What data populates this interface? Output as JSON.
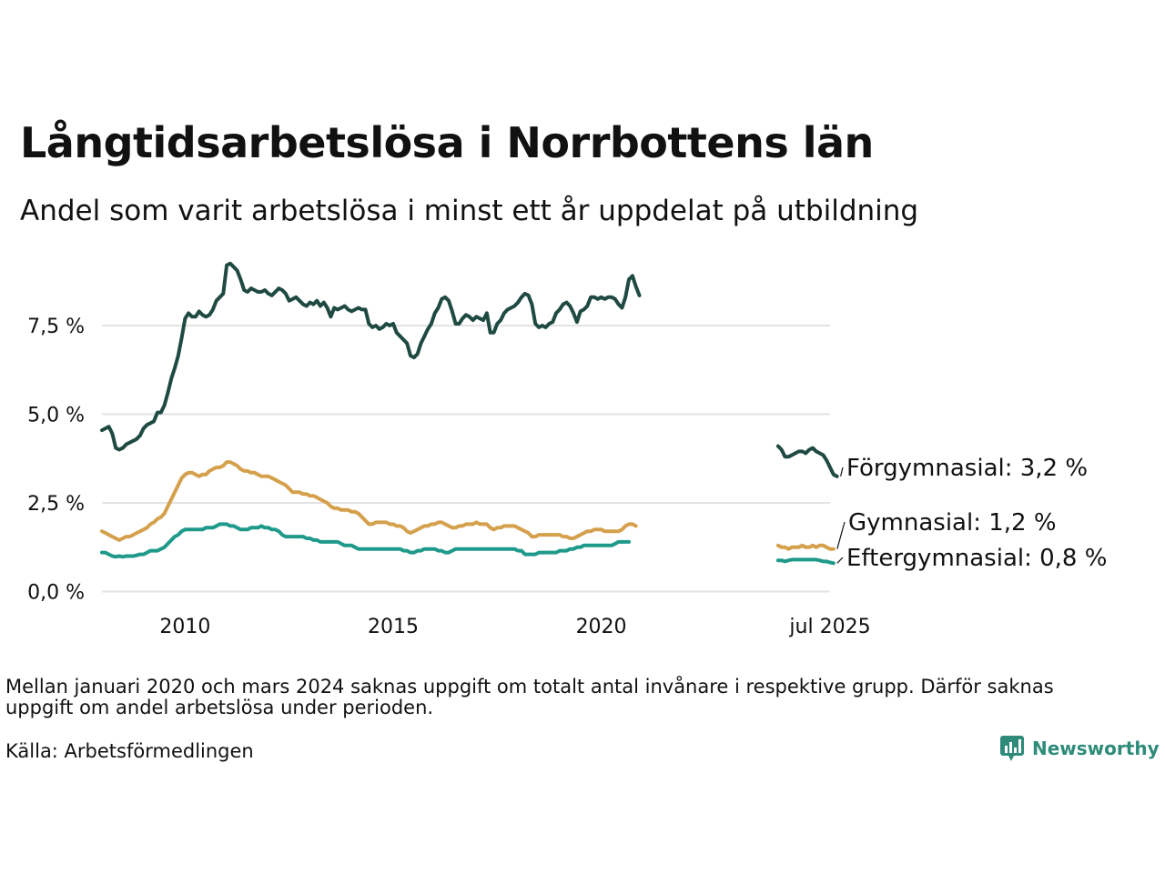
{
  "title": "Långtidsarbetslösa i Norrbottens län",
  "subtitle": "Andel som varit arbetslösa i minst ett år uppdelat på utbildning",
  "note": "Mellan januari 2020 och mars 2024 saknas uppgift om totalt antal invånare i respektive grupp. Därför saknas uppgift om andel arbetslösa under perioden.",
  "source": "Källa: Arbetsförmedlingen",
  "brand": "Newsworthy",
  "chart_data": {
    "type": "line",
    "title": "Långtidsarbetslösa i Norrbottens län",
    "subtitle": "Andel som varit arbetslösa i minst ett år uppdelat på utbildning",
    "xlabel": "",
    "ylabel": "",
    "ylim": [
      -0.5,
      9.5
    ],
    "xlim": [
      "2008-01",
      "2025-07"
    ],
    "y_ticks": [
      0,
      2.5,
      5,
      7.5
    ],
    "y_tick_labels": [
      "0,0 %",
      "2,5 %",
      "5,0 %",
      "7,5 %"
    ],
    "x_ticks": [
      "2010-01",
      "2015-01",
      "2020-01",
      "2025-07"
    ],
    "x_tick_labels": [
      "2010",
      "2015",
      "2020",
      "jul 2025"
    ],
    "grid": "horizontal",
    "series": [
      {
        "name": "Förgymnasial",
        "label": "Förgymnasial: 3,2 %",
        "color": "#1f4a42",
        "segments": [
          {
            "start": "2008-01",
            "values": [
              4.55,
              4.6,
              4.65,
              4.45,
              4.05,
              4,
              4.05,
              4.15,
              4.2,
              4.25,
              4.3,
              4.4,
              4.6,
              4.7,
              4.75,
              4.8,
              5.05,
              5.05,
              5.25,
              5.6,
              6,
              6.3,
              6.65,
              7.15,
              7.7,
              7.85,
              7.75,
              7.75,
              7.9,
              7.8,
              7.75,
              7.8,
              7.95,
              8.2,
              8.3,
              8.4,
              9.2,
              9.25,
              9.15,
              9.05,
              8.8,
              8.5,
              8.45,
              8.55,
              8.5,
              8.45,
              8.45,
              8.5,
              8.4,
              8.35,
              8.45,
              8.55,
              8.5,
              8.4,
              8.2,
              8.25,
              8.3,
              8.2,
              8.1,
              8.05,
              8.15,
              8.1,
              8.2,
              8.05,
              8.15,
              8.0,
              7.75,
              8.0,
              7.95,
              8.0,
              8.05,
              7.95,
              7.9,
              7.95,
              8.0,
              7.95,
              7.95,
              7.55,
              7.45,
              7.5,
              7.4,
              7.45,
              7.55,
              7.5,
              7.55,
              7.3,
              7.2,
              7.1,
              7.0,
              6.65,
              6.6,
              6.7,
              7.0,
              7.2,
              7.4,
              7.55,
              7.85,
              8.0,
              8.25,
              8.3,
              8.2,
              7.9,
              7.55,
              7.55,
              7.7,
              7.8,
              7.75,
              7.65,
              7.75,
              7.7,
              7.65,
              7.85,
              7.3,
              7.3,
              7.55,
              7.65,
              7.85,
              7.95,
              8.0,
              8.05,
              8.15,
              8.3,
              8.4,
              8.35,
              8.1,
              7.55,
              7.45,
              7.5,
              7.45,
              7.55,
              7.6,
              7.85,
              7.95,
              8.1,
              8.15,
              8.05,
              7.85,
              7.6,
              7.9,
              7.95,
              8.05,
              8.3,
              8.3,
              8.25,
              8.3,
              8.25,
              8.3,
              8.3,
              8.25,
              8.1,
              8.0,
              8.3,
              8.8,
              8.9,
              8.6,
              8.35
            ]
          },
          {
            "start": "2024-04",
            "values": [
              4.1,
              4.0,
              3.8,
              3.8,
              3.85,
              3.9,
              3.95,
              3.95,
              3.9,
              4.0,
              4.05,
              3.95,
              3.9,
              3.85,
              3.7,
              3.5,
              3.3,
              3.25
            ]
          }
        ]
      },
      {
        "name": "Gymnasial",
        "label": "Gymnasial: 1,2 %",
        "color": "#d4a04c",
        "segments": [
          {
            "start": "2008-01",
            "values": [
              1.7,
              1.65,
              1.6,
              1.55,
              1.5,
              1.45,
              1.5,
              1.55,
              1.55,
              1.6,
              1.65,
              1.7,
              1.75,
              1.8,
              1.9,
              1.95,
              2.05,
              2.1,
              2.2,
              2.4,
              2.6,
              2.8,
              3.0,
              3.2,
              3.3,
              3.35,
              3.35,
              3.3,
              3.25,
              3.3,
              3.3,
              3.4,
              3.45,
              3.5,
              3.5,
              3.55,
              3.65,
              3.65,
              3.6,
              3.55,
              3.45,
              3.4,
              3.4,
              3.35,
              3.35,
              3.3,
              3.25,
              3.25,
              3.25,
              3.2,
              3.15,
              3.1,
              3.05,
              3.0,
              2.9,
              2.8,
              2.8,
              2.8,
              2.75,
              2.75,
              2.7,
              2.7,
              2.65,
              2.6,
              2.55,
              2.5,
              2.4,
              2.35,
              2.35,
              2.3,
              2.3,
              2.3,
              2.25,
              2.25,
              2.2,
              2.1,
              2.0,
              1.9,
              1.9,
              1.95,
              1.95,
              1.95,
              1.95,
              1.9,
              1.9,
              1.85,
              1.85,
              1.8,
              1.7,
              1.65,
              1.7,
              1.75,
              1.8,
              1.85,
              1.85,
              1.9,
              1.9,
              1.95,
              1.95,
              1.9,
              1.85,
              1.8,
              1.8,
              1.85,
              1.85,
              1.9,
              1.9,
              1.9,
              1.95,
              1.9,
              1.9,
              1.9,
              1.8,
              1.75,
              1.8,
              1.8,
              1.85,
              1.85,
              1.85,
              1.85,
              1.8,
              1.75,
              1.7,
              1.65,
              1.55,
              1.55,
              1.6,
              1.6,
              1.6,
              1.6,
              1.6,
              1.6,
              1.6,
              1.55,
              1.55,
              1.5,
              1.5,
              1.55,
              1.6,
              1.65,
              1.7,
              1.7,
              1.75,
              1.75,
              1.75,
              1.7,
              1.7,
              1.7,
              1.7,
              1.7,
              1.75,
              1.85,
              1.9,
              1.9,
              1.85
            ]
          },
          {
            "start": "2024-04",
            "values": [
              1.3,
              1.25,
              1.25,
              1.2,
              1.25,
              1.25,
              1.25,
              1.3,
              1.25,
              1.25,
              1.3,
              1.25,
              1.3,
              1.3,
              1.25,
              1.2,
              1.2
            ]
          }
        ]
      },
      {
        "name": "Eftergymnasial",
        "label": "Eftergymnasial: 0,8 %",
        "color": "#1f9a8a",
        "segments": [
          {
            "start": "2008-01",
            "values": [
              1.1,
              1.1,
              1.05,
              1.0,
              0.98,
              1.0,
              0.98,
              1.0,
              1.0,
              1.0,
              1.02,
              1.05,
              1.05,
              1.1,
              1.15,
              1.15,
              1.15,
              1.2,
              1.25,
              1.35,
              1.45,
              1.55,
              1.6,
              1.7,
              1.75,
              1.75,
              1.75,
              1.75,
              1.75,
              1.75,
              1.8,
              1.8,
              1.8,
              1.85,
              1.9,
              1.9,
              1.9,
              1.85,
              1.85,
              1.8,
              1.75,
              1.75,
              1.75,
              1.8,
              1.8,
              1.8,
              1.85,
              1.8,
              1.8,
              1.75,
              1.75,
              1.7,
              1.6,
              1.55,
              1.55,
              1.55,
              1.55,
              1.55,
              1.55,
              1.5,
              1.5,
              1.45,
              1.45,
              1.4,
              1.4,
              1.4,
              1.4,
              1.4,
              1.4,
              1.35,
              1.3,
              1.3,
              1.3,
              1.25,
              1.2,
              1.2,
              1.2,
              1.2,
              1.2,
              1.2,
              1.2,
              1.2,
              1.2,
              1.2,
              1.2,
              1.2,
              1.2,
              1.15,
              1.15,
              1.1,
              1.1,
              1.15,
              1.15,
              1.2,
              1.2,
              1.2,
              1.2,
              1.15,
              1.15,
              1.1,
              1.1,
              1.15,
              1.2,
              1.2,
              1.2,
              1.2,
              1.2,
              1.2,
              1.2,
              1.2,
              1.2,
              1.2,
              1.2,
              1.2,
              1.2,
              1.2,
              1.2,
              1.2,
              1.2,
              1.2,
              1.15,
              1.15,
              1.05,
              1.05,
              1.05,
              1.05,
              1.1,
              1.1,
              1.1,
              1.1,
              1.1,
              1.1,
              1.15,
              1.15,
              1.15,
              1.2,
              1.2,
              1.25,
              1.25,
              1.3,
              1.3,
              1.3,
              1.3,
              1.3,
              1.3,
              1.3,
              1.3,
              1.3,
              1.35,
              1.4,
              1.4,
              1.4,
              1.4
            ]
          },
          {
            "start": "2024-04",
            "values": [
              0.88,
              0.88,
              0.85,
              0.88,
              0.9,
              0.9,
              0.9,
              0.9,
              0.9,
              0.9,
              0.9,
              0.9,
              0.88,
              0.85,
              0.85,
              0.82,
              0.8
            ]
          }
        ]
      }
    ]
  }
}
